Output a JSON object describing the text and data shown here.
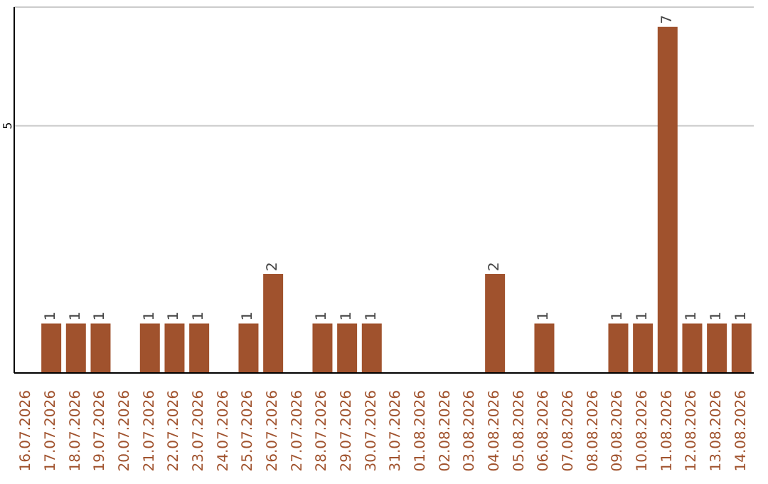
{
  "chart_data": {
    "type": "bar",
    "categories": [
      "16.07.2026",
      "17.07.2026",
      "18.07.2026",
      "19.07.2026",
      "20.07.2026",
      "21.07.2026",
      "22.07.2026",
      "23.07.2026",
      "24.07.2026",
      "25.07.2026",
      "26.07.2026",
      "27.07.2026",
      "28.07.2026",
      "29.07.2026",
      "30.07.2026",
      "31.07.2026",
      "01.08.2026",
      "02.08.2026",
      "03.08.2026",
      "04.08.2026",
      "05.08.2026",
      "06.08.2026",
      "07.08.2026",
      "08.08.2026",
      "09.08.2026",
      "10.08.2026",
      "11.08.2026",
      "12.08.2026",
      "13.08.2026",
      "14.08.2026"
    ],
    "values": [
      0,
      1,
      1,
      1,
      0,
      1,
      1,
      1,
      0,
      1,
      2,
      0,
      1,
      1,
      1,
      0,
      0,
      0,
      0,
      2,
      0,
      1,
      0,
      0,
      1,
      1,
      7,
      1,
      1,
      1
    ],
    "value_labels": [
      null,
      "1",
      "1",
      "1",
      null,
      "1",
      "1",
      "1",
      null,
      "1",
      "2",
      null,
      "1",
      "1",
      "1",
      null,
      null,
      null,
      null,
      "2",
      null,
      "1",
      null,
      null,
      "1",
      "1",
      "7",
      "1",
      "1",
      "1"
    ],
    "color": "#a0522d",
    "ylim": [
      0,
      7.4
    ],
    "yticks": [
      5
    ],
    "grid": "y"
  }
}
